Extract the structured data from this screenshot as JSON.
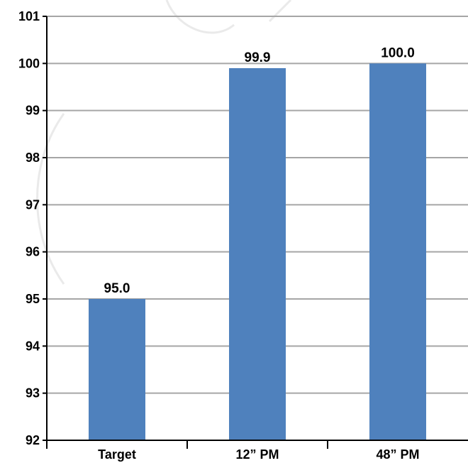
{
  "chart_data": {
    "type": "bar",
    "categories": [
      "Target",
      "12” PM",
      "48” PM"
    ],
    "values": [
      95.0,
      99.9,
      100.0
    ],
    "data_labels": [
      "95.0",
      "99.9",
      "100.0"
    ],
    "title": "",
    "xlabel": "",
    "ylabel": "",
    "ylim": [
      92,
      101
    ],
    "yticks": [
      "92",
      "93",
      "94",
      "95",
      "96",
      "97",
      "98",
      "99",
      "100",
      "101"
    ],
    "grid": true,
    "legend": "none",
    "bar_color": "#4f81bd",
    "grid_color": "#a6a6a6",
    "axis_color": "#000000"
  }
}
